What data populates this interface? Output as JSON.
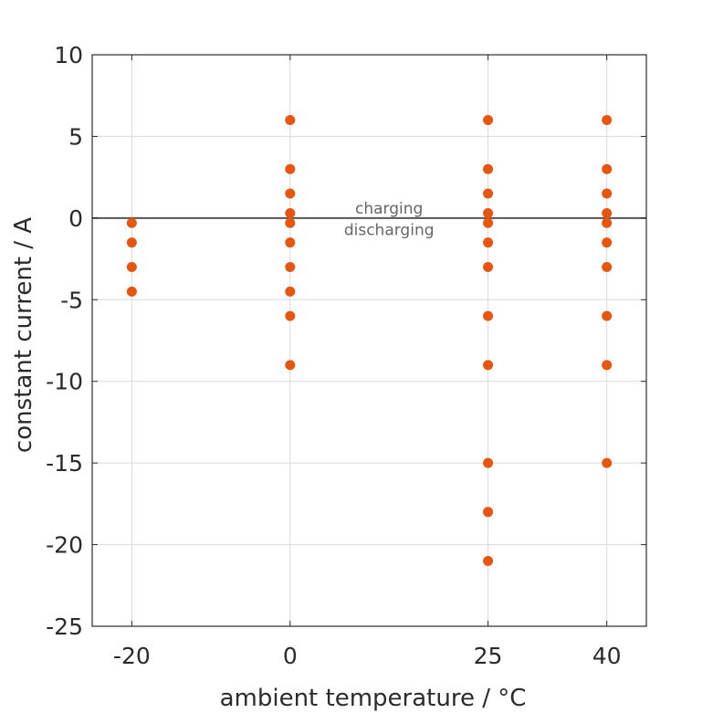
{
  "chart_data": {
    "type": "scatter",
    "title": "",
    "xlabel": "ambient temperature / °C",
    "ylabel": "constant current / A",
    "xticks": [
      -20,
      0,
      25,
      40
    ],
    "yticks": [
      -25,
      -20,
      -15,
      -10,
      -5,
      0,
      5,
      10
    ],
    "xlim": [
      -25,
      45
    ],
    "ylim": [
      -25,
      10
    ],
    "grid": true,
    "zero_line": true,
    "annotations": [
      {
        "text": "charging",
        "x": 12.5,
        "y": 0.6
      },
      {
        "text": "discharging",
        "x": 12.5,
        "y": -0.7
      }
    ],
    "marker_color": "#e8550f",
    "axis_color": "#2b2b2b",
    "grid_color": "#d9d9d9",
    "zero_line_color": "#555555",
    "points": [
      {
        "x": -20,
        "y": -0.3
      },
      {
        "x": -20,
        "y": -1.5
      },
      {
        "x": -20,
        "y": -3
      },
      {
        "x": -20,
        "y": -4.5
      },
      {
        "x": 0,
        "y": 6
      },
      {
        "x": 0,
        "y": 3
      },
      {
        "x": 0,
        "y": 1.5
      },
      {
        "x": 0,
        "y": 0.3
      },
      {
        "x": 0,
        "y": -0.3
      },
      {
        "x": 0,
        "y": -1.5
      },
      {
        "x": 0,
        "y": -3
      },
      {
        "x": 0,
        "y": -4.5
      },
      {
        "x": 0,
        "y": -6
      },
      {
        "x": 0,
        "y": -9
      },
      {
        "x": 25,
        "y": 6
      },
      {
        "x": 25,
        "y": 3
      },
      {
        "x": 25,
        "y": 1.5
      },
      {
        "x": 25,
        "y": 0.3
      },
      {
        "x": 25,
        "y": -0.3
      },
      {
        "x": 25,
        "y": -1.5
      },
      {
        "x": 25,
        "y": -3
      },
      {
        "x": 25,
        "y": -6
      },
      {
        "x": 25,
        "y": -9
      },
      {
        "x": 25,
        "y": -15
      },
      {
        "x": 25,
        "y": -18
      },
      {
        "x": 25,
        "y": -21
      },
      {
        "x": 40,
        "y": 6
      },
      {
        "x": 40,
        "y": 3
      },
      {
        "x": 40,
        "y": 1.5
      },
      {
        "x": 40,
        "y": 0.3
      },
      {
        "x": 40,
        "y": -0.3
      },
      {
        "x": 40,
        "y": -1.5
      },
      {
        "x": 40,
        "y": -3
      },
      {
        "x": 40,
        "y": -6
      },
      {
        "x": 40,
        "y": -9
      },
      {
        "x": 40,
        "y": -15
      }
    ]
  }
}
